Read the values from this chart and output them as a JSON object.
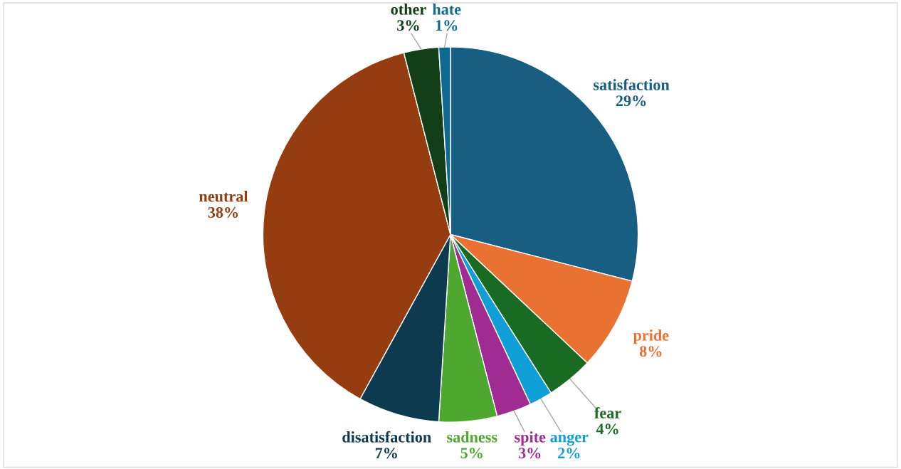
{
  "chart_data": {
    "type": "pie",
    "categories": [
      "satisfaction",
      "pride",
      "fear",
      "anger",
      "spite",
      "sadness",
      "disatisfaction",
      "neutral",
      "other",
      "hate"
    ],
    "values": [
      29,
      8,
      4,
      2,
      3,
      5,
      7,
      38,
      3,
      1
    ],
    "value_labels": [
      "29%",
      "8%",
      "4%",
      "2%",
      "3%",
      "5%",
      "7%",
      "38%",
      "3%",
      "1%"
    ],
    "colors": [
      "#175e82",
      "#e97132",
      "#196b24",
      "#0f9ed5",
      "#a02b93",
      "#4ea72e",
      "#0e3a50",
      "#953d10",
      "#123f18",
      "#0f6a8f"
    ],
    "legend": false
  }
}
